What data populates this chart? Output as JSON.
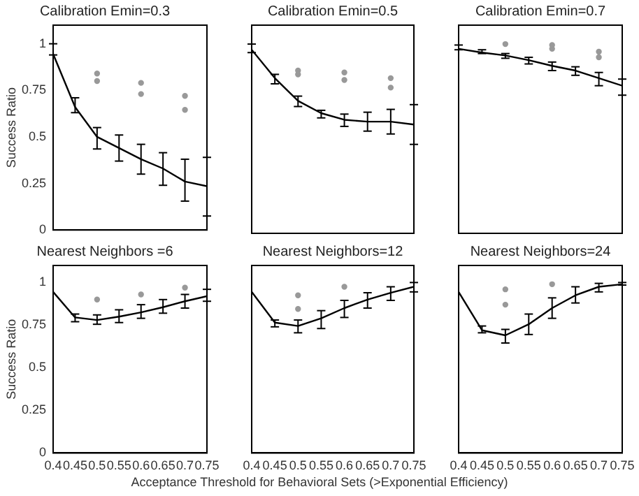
{
  "chart_data": [
    {
      "type": "line",
      "title": "Calibration Emin=0.3",
      "ylabel": "Success Ratio",
      "xlim": [
        0.4,
        0.75
      ],
      "xticks": [
        0.4,
        0.45,
        0.5,
        0.55,
        0.6,
        0.65,
        0.7,
        0.75
      ],
      "ylim": [
        0,
        1.1
      ],
      "yticks": [
        0,
        0.25,
        0.5,
        0.75,
        1
      ],
      "tick_labels": "y",
      "grid": false,
      "legend": false,
      "marker": "none",
      "series": [
        {
          "type": "line",
          "color": "#000000",
          "x": [
            0.4,
            0.45,
            0.5,
            0.55,
            0.6,
            0.65,
            0.7,
            0.75
          ],
          "values": [
            0.945,
            0.66,
            0.5,
            0.44,
            0.38,
            0.33,
            0.26,
            0.235
          ],
          "errors": [
            [
              0.94,
              1.0
            ],
            [
              0.63,
              0.71
            ],
            [
              0.435,
              0.55
            ],
            [
              0.37,
              0.51
            ],
            [
              0.3,
              0.46
            ],
            [
              0.24,
              0.415
            ],
            [
              0.155,
              0.38
            ],
            [
              0.075,
              0.39
            ]
          ]
        },
        {
          "type": "scatter",
          "color": "#999999",
          "marker": "circle",
          "x": [
            0.5,
            0.5,
            0.6,
            0.6,
            0.7,
            0.7
          ],
          "values": [
            0.84,
            0.8,
            0.79,
            0.73,
            0.72,
            0.645
          ]
        }
      ]
    },
    {
      "type": "line",
      "title": "Calibration Emin=0.5",
      "xlim": [
        0.4,
        0.75
      ],
      "xticks": [
        0.4,
        0.45,
        0.5,
        0.55,
        0.6,
        0.65,
        0.7,
        0.75
      ],
      "ylim": [
        0,
        1.1
      ],
      "yticks": [
        0,
        0.25,
        0.5,
        0.75,
        1
      ],
      "tick_labels": false,
      "grid": false,
      "legend": false,
      "marker": "none",
      "series": [
        {
          "type": "line",
          "color": "#000000",
          "x": [
            0.4,
            0.45,
            0.5,
            0.55,
            0.6,
            0.65,
            0.7,
            0.75
          ],
          "values": [
            0.97,
            0.82,
            0.7,
            0.635,
            0.6,
            0.59,
            0.59,
            0.575
          ],
          "errors": [
            [
              0.955,
              1.0
            ],
            [
              0.79,
              0.84
            ],
            [
              0.67,
              0.725
            ],
            [
              0.61,
              0.65
            ],
            [
              0.565,
              0.63
            ],
            [
              0.54,
              0.64
            ],
            [
              0.525,
              0.655
            ],
            [
              0.47,
              0.68
            ]
          ]
        },
        {
          "type": "scatter",
          "color": "#999999",
          "marker": "circle",
          "x": [
            0.5,
            0.5,
            0.6,
            0.6,
            0.7,
            0.7
          ],
          "values": [
            0.86,
            0.84,
            0.85,
            0.81,
            0.82,
            0.77
          ]
        }
      ]
    },
    {
      "type": "line",
      "title": "Calibration Emin=0.7",
      "xlim": [
        0.4,
        0.75
      ],
      "xticks": [
        0.4,
        0.45,
        0.5,
        0.55,
        0.6,
        0.65,
        0.7,
        0.75
      ],
      "ylim": [
        0,
        1.1
      ],
      "yticks": [
        0,
        0.25,
        0.5,
        0.75,
        1
      ],
      "tick_labels": false,
      "grid": false,
      "legend": false,
      "marker": "none",
      "series": [
        {
          "type": "line",
          "color": "#000000",
          "x": [
            0.4,
            0.45,
            0.5,
            0.55,
            0.6,
            0.65,
            0.7,
            0.75
          ],
          "values": [
            0.975,
            0.955,
            0.94,
            0.915,
            0.885,
            0.86,
            0.82,
            0.78
          ],
          "errors": [
            [
              0.97,
              0.995
            ],
            [
              0.95,
              0.97
            ],
            [
              0.925,
              0.95
            ],
            [
              0.895,
              0.93
            ],
            [
              0.86,
              0.905
            ],
            [
              0.835,
              0.88
            ],
            [
              0.78,
              0.85
            ],
            [
              0.73,
              0.815
            ]
          ]
        },
        {
          "type": "scatter",
          "color": "#999999",
          "marker": "circle",
          "x": [
            0.5,
            0.6,
            0.6,
            0.7,
            0.7
          ],
          "values": [
            1.0,
            0.995,
            0.975,
            0.96,
            0.93
          ]
        }
      ]
    },
    {
      "type": "line",
      "title": "Nearest Neighbors =6",
      "ylabel": "Success Ratio",
      "xlim": [
        0.4,
        0.75
      ],
      "xticks": [
        0.4,
        0.45,
        0.5,
        0.55,
        0.6,
        0.65,
        0.7,
        0.75
      ],
      "ylim": [
        0,
        1.1
      ],
      "yticks": [
        0,
        0.25,
        0.5,
        0.75,
        1
      ],
      "grid": false,
      "legend": false,
      "marker": "none",
      "series": [
        {
          "type": "line",
          "color": "#000000",
          "x": [
            0.4,
            0.45,
            0.5,
            0.55,
            0.6,
            0.65,
            0.7,
            0.75
          ],
          "values": [
            0.945,
            0.795,
            0.78,
            0.8,
            0.825,
            0.855,
            0.89,
            0.92
          ],
          "errors": [
            null,
            [
              0.77,
              0.815
            ],
            [
              0.755,
              0.81
            ],
            [
              0.765,
              0.84
            ],
            [
              0.79,
              0.87
            ],
            [
              0.82,
              0.9
            ],
            [
              0.85,
              0.93
            ],
            [
              0.89,
              0.96
            ]
          ]
        },
        {
          "type": "scatter",
          "color": "#999999",
          "marker": "circle",
          "x": [
            0.5,
            0.6,
            0.7
          ],
          "values": [
            0.9,
            0.93,
            0.97
          ]
        }
      ]
    },
    {
      "type": "line",
      "title": "Nearest Neighbors=12",
      "xlabel": "Acceptance Threshold for Behavioral Sets (>Exponential Efficiency)",
      "xlim": [
        0.4,
        0.75
      ],
      "xticks": [
        0.4,
        0.45,
        0.5,
        0.55,
        0.6,
        0.65,
        0.7,
        0.75
      ],
      "ylim": [
        0,
        1.1
      ],
      "yticks": [
        0,
        0.25,
        0.5,
        0.75,
        1
      ],
      "tick_labels": "x",
      "grid": false,
      "legend": false,
      "marker": "none",
      "series": [
        {
          "type": "line",
          "color": "#000000",
          "x": [
            0.4,
            0.45,
            0.5,
            0.55,
            0.6,
            0.65,
            0.7,
            0.75
          ],
          "values": [
            0.945,
            0.765,
            0.745,
            0.79,
            0.85,
            0.9,
            0.94,
            0.975
          ],
          "errors": [
            null,
            [
              0.74,
              0.78
            ],
            [
              0.705,
              0.78
            ],
            [
              0.73,
              0.835
            ],
            [
              0.795,
              0.895
            ],
            [
              0.85,
              0.94
            ],
            [
              0.895,
              0.975
            ],
            [
              0.945,
              1.0
            ]
          ]
        },
        {
          "type": "scatter",
          "color": "#999999",
          "marker": "circle",
          "x": [
            0.5,
            0.5,
            0.6
          ],
          "values": [
            0.925,
            0.845,
            0.975
          ]
        }
      ]
    },
    {
      "type": "line",
      "title": "Nearest Neighbors=24",
      "xlim": [
        0.4,
        0.75
      ],
      "xticks": [
        0.4,
        0.45,
        0.5,
        0.55,
        0.6,
        0.65,
        0.7,
        0.75
      ],
      "ylim": [
        0,
        1.1
      ],
      "yticks": [
        0,
        0.25,
        0.5,
        0.75,
        1
      ],
      "tick_labels": "x",
      "grid": false,
      "legend": false,
      "marker": "none",
      "series": [
        {
          "type": "line",
          "color": "#000000",
          "x": [
            0.4,
            0.45,
            0.5,
            0.55,
            0.6,
            0.65,
            0.7,
            0.75
          ],
          "values": [
            0.945,
            0.72,
            0.69,
            0.755,
            0.85,
            0.925,
            0.975,
            0.99
          ],
          "errors": [
            null,
            [
              0.705,
              0.745
            ],
            [
              0.645,
              0.725
            ],
            [
              0.695,
              0.815
            ],
            [
              0.79,
              0.91
            ],
            [
              0.88,
              0.975
            ],
            [
              0.945,
              0.995
            ],
            [
              0.985,
              1.0
            ]
          ]
        },
        {
          "type": "scatter",
          "color": "#999999",
          "marker": "circle",
          "x": [
            0.5,
            0.5,
            0.6
          ],
          "values": [
            0.96,
            0.87,
            0.99
          ]
        }
      ]
    }
  ]
}
